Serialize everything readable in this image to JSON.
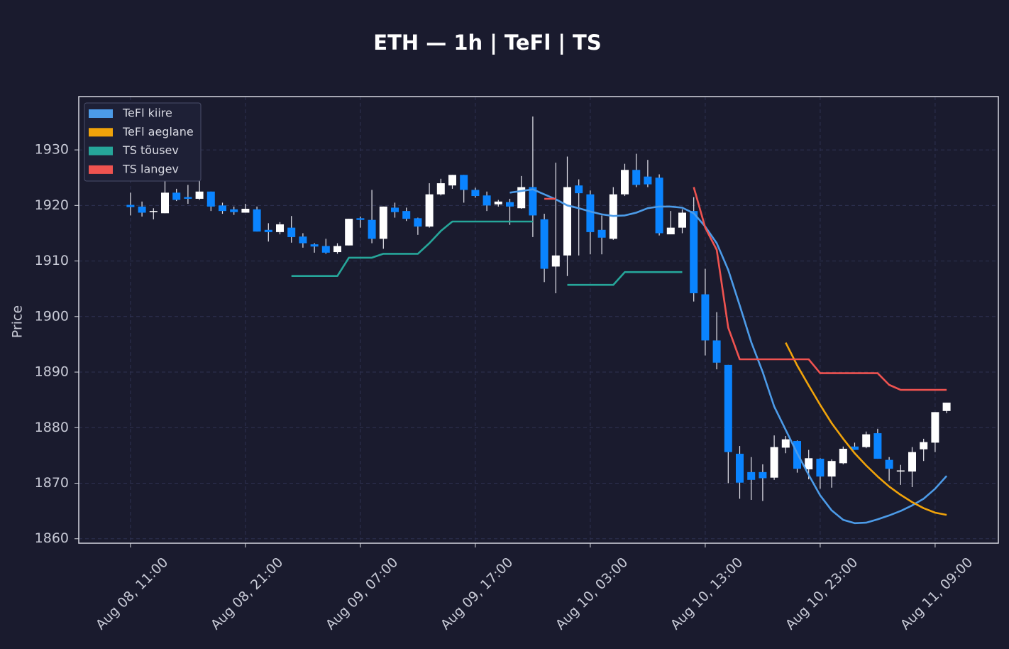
{
  "chart_data": {
    "type": "candlestick",
    "title": "ETH — 1h  |  TeFl  |  TS",
    "y_label": "Price",
    "categories": [
      "Aug 08, 11:00",
      null,
      null,
      null,
      null,
      null,
      null,
      null,
      null,
      null,
      "Aug 08, 21:00",
      null,
      null,
      null,
      null,
      null,
      null,
      null,
      null,
      null,
      "Aug 09, 07:00",
      null,
      null,
      null,
      null,
      null,
      null,
      null,
      null,
      null,
      "Aug 09, 17:00",
      null,
      null,
      null,
      null,
      null,
      null,
      null,
      null,
      null,
      "Aug 10, 03:00",
      null,
      null,
      null,
      null,
      null,
      null,
      null,
      null,
      null,
      "Aug 10, 13:00",
      null,
      null,
      null,
      null,
      null,
      null,
      null,
      null,
      null,
      "Aug 10, 23:00",
      null,
      null,
      null,
      null,
      null,
      null,
      null,
      null,
      null,
      "Aug 11, 09:00",
      null
    ],
    "open": [
      1920.1,
      1919.8,
      1918.8,
      1918.6,
      1922.3,
      1921.5,
      1921.2,
      1922.5,
      1920,
      1919.3,
      1918.7,
      1919.3,
      1915.6,
      1915.2,
      1916,
      1914.4,
      1913,
      1912.7,
      1911.6,
      1912.8,
      1917.7,
      1917.4,
      1914,
      1919.6,
      1919,
      1917.7,
      1916.2,
      1922,
      1923.6,
      1925.5,
      1922.8,
      1921.8,
      1920.2,
      1920.6,
      1919.5,
      1923.3,
      1917.5,
      1909,
      1911,
      1923.6,
      1922,
      1915.6,
      1914,
      1922,
      1926.4,
      1925.2,
      1925,
      1914.8,
      1916,
      1919,
      1904,
      1895.7,
      1891.3,
      1875.3,
      1872,
      1872,
      1871,
      1876.4,
      1877.6,
      1872.5,
      1874.4,
      1871.2,
      1873.6,
      1876.6,
      1876.5,
      1879,
      1874.2,
      1872.1,
      1872.1,
      1876.1,
      1877.3,
      1883
    ],
    "high": [
      1922.3,
      1920.7,
      1919.5,
      1924.5,
      1923,
      1923.7,
      1924.6,
      1922.5,
      1920.5,
      1919.8,
      1920.3,
      1919.8,
      1916.8,
      1917,
      1918.1,
      1915,
      1913.2,
      1914,
      1913.2,
      1917.6,
      1918,
      1922.8,
      1919.8,
      1920.5,
      1919.6,
      1917.8,
      1924,
      1924.8,
      1925.5,
      1925.5,
      1923.2,
      1922.5,
      1921,
      1921.2,
      1925.3,
      1936,
      1918.5,
      1927.7,
      1928.8,
      1924.7,
      1922.7,
      1918.2,
      1923.3,
      1927.5,
      1929.3,
      1928.2,
      1925.6,
      1919,
      1919.3,
      1921.5,
      1908.6,
      1900.8,
      1891.3,
      1876.7,
      1874.7,
      1873.4,
      1878.6,
      1878.5,
      1877.7,
      1876,
      1874.5,
      1874.3,
      1876.6,
      1877.3,
      1879.3,
      1879.8,
      1874.7,
      1873.3,
      1876.5,
      1878,
      1882.8,
      1884.5
    ],
    "low": [
      1918.2,
      1918,
      1917.5,
      1918.6,
      1920.8,
      1920.3,
      1921,
      1919,
      1918.5,
      1918.3,
      1918.7,
      1915.3,
      1913.5,
      1914.8,
      1913.3,
      1912.4,
      1911.5,
      1911.3,
      1911.3,
      1912.8,
      1916,
      1913.2,
      1912.2,
      1917.8,
      1917.2,
      1914.7,
      1916,
      1921.8,
      1923,
      1920.5,
      1921.4,
      1919,
      1919.8,
      1916.5,
      1919.4,
      1914.3,
      1906.2,
      1904.2,
      1907.3,
      1911,
      1911.2,
      1911.2,
      1913.8,
      1921.7,
      1923.3,
      1923.3,
      1914.6,
      1914.8,
      1915,
      1902.7,
      1893,
      1890.5,
      1870,
      1867.2,
      1867,
      1866.8,
      1870.6,
      1875.4,
      1871.9,
      1870.7,
      1869,
      1869.2,
      1873.4,
      1876,
      1876.3,
      1874.4,
      1870.4,
      1869.7,
      1869.3,
      1874,
      1875.6,
      1882.6
    ],
    "close": [
      1919.7,
      1918.7,
      1919,
      1922.3,
      1921,
      1921.2,
      1922.5,
      1919.8,
      1919,
      1918.8,
      1919.4,
      1915.3,
      1915.2,
      1916.6,
      1914.3,
      1913.2,
      1912.6,
      1911.5,
      1912.7,
      1917.6,
      1917.4,
      1914,
      1919.8,
      1918.8,
      1917.6,
      1916.2,
      1922,
      1924,
      1925.5,
      1922.8,
      1921.7,
      1920,
      1920.7,
      1919.8,
      1923.3,
      1918.2,
      1908.6,
      1911,
      1923.3,
      1922.2,
      1915.2,
      1914.2,
      1922,
      1926.4,
      1923.7,
      1923.8,
      1915,
      1916,
      1918.7,
      1904.2,
      1895.7,
      1891.7,
      1875.6,
      1870.1,
      1870.6,
      1870.9,
      1876.5,
      1877.9,
      1872.6,
      1874.5,
      1871.2,
      1874,
      1876.2,
      1876,
      1878.8,
      1874.4,
      1872.6,
      1872.3,
      1875.6,
      1877.4,
      1882.8,
      1884.5
    ],
    "up_color": "#ffffff",
    "down_color": "#0a84ff",
    "wick_color": "#e6e6ee",
    "series": [
      {
        "name": "TeFl kiire",
        "color": "#4c9be8",
        "values": [
          null,
          null,
          null,
          null,
          null,
          null,
          null,
          null,
          null,
          null,
          null,
          null,
          null,
          null,
          null,
          null,
          null,
          null,
          null,
          null,
          null,
          null,
          null,
          null,
          null,
          null,
          null,
          null,
          null,
          null,
          null,
          null,
          null,
          1922.3,
          1922.6,
          1922.9,
          1922,
          1921.1,
          1920,
          1919.5,
          1918.9,
          1918.4,
          1918.1,
          1918.2,
          1918.7,
          1919.5,
          1919.8,
          1919.8,
          1919.6,
          1918.6,
          1916.2,
          1913.2,
          1908.4,
          1902,
          1895.4,
          1890,
          1883.8,
          1879.6,
          1875.4,
          1871.5,
          1867.8,
          1865.1,
          1863.4,
          1862.8,
          1862.9,
          1863.5,
          1864.2,
          1865,
          1866,
          1867.2,
          1869,
          1871.3
        ]
      },
      {
        "name": "TeFl aeglane",
        "color": "#f0a30a",
        "values": [
          null,
          null,
          null,
          null,
          null,
          null,
          null,
          null,
          null,
          null,
          null,
          null,
          null,
          null,
          null,
          null,
          null,
          null,
          null,
          null,
          null,
          null,
          null,
          null,
          null,
          null,
          null,
          null,
          null,
          null,
          null,
          null,
          null,
          null,
          null,
          null,
          null,
          null,
          null,
          null,
          null,
          null,
          null,
          null,
          null,
          null,
          null,
          null,
          null,
          null,
          null,
          null,
          null,
          null,
          null,
          null,
          null,
          1895.3,
          1891.2,
          1887.6,
          1884.1,
          1880.8,
          1878,
          1875.4,
          1873.2,
          1871.2,
          1869.4,
          1867.9,
          1866.6,
          1865.5,
          1864.7,
          1864.3
        ]
      },
      {
        "name": "TS tõusev",
        "color": "#26a69a",
        "values": [
          null,
          null,
          null,
          null,
          null,
          null,
          null,
          null,
          null,
          null,
          null,
          null,
          null,
          null,
          1907.3,
          1907.3,
          1907.3,
          1907.3,
          1907.3,
          1910.6,
          1910.6,
          1910.6,
          1911.3,
          1911.3,
          1911.3,
          1911.3,
          1913.2,
          1915.4,
          1917.1,
          1917.1,
          1917.1,
          1917.1,
          1917.1,
          1917.1,
          1917.1,
          1917.1,
          null,
          null,
          1905.7,
          1905.7,
          1905.7,
          1905.7,
          1905.7,
          1908,
          1908,
          1908,
          1908,
          1908,
          1908,
          null,
          null,
          null,
          null,
          null,
          null,
          null,
          null,
          null,
          null,
          null,
          null,
          null,
          null,
          null,
          null,
          null,
          null,
          null,
          null,
          null,
          null,
          null
        ]
      },
      {
        "name": "TS langev",
        "color": "#ef5350",
        "values": [
          null,
          null,
          null,
          null,
          null,
          null,
          null,
          null,
          null,
          null,
          null,
          null,
          null,
          null,
          null,
          null,
          null,
          null,
          null,
          null,
          null,
          null,
          null,
          null,
          null,
          null,
          null,
          null,
          null,
          null,
          null,
          null,
          null,
          null,
          null,
          null,
          1921.2,
          1921.2,
          null,
          null,
          null,
          null,
          null,
          null,
          null,
          null,
          null,
          null,
          null,
          1923.3,
          1916,
          1912,
          1898,
          1892.3,
          1892.3,
          1892.3,
          1892.3,
          1892.3,
          1892.3,
          1892.3,
          1889.8,
          1889.8,
          1889.8,
          1889.8,
          1889.8,
          1889.8,
          1887.7,
          1886.8,
          1886.8,
          1886.8,
          1886.8,
          1886.8
        ]
      }
    ],
    "ylim": [
      1859.2,
      1939.6
    ],
    "yticks": [
      1860,
      1870,
      1880,
      1890,
      1900,
      1910,
      1920,
      1930
    ],
    "grid": true,
    "legend": "upper left"
  }
}
